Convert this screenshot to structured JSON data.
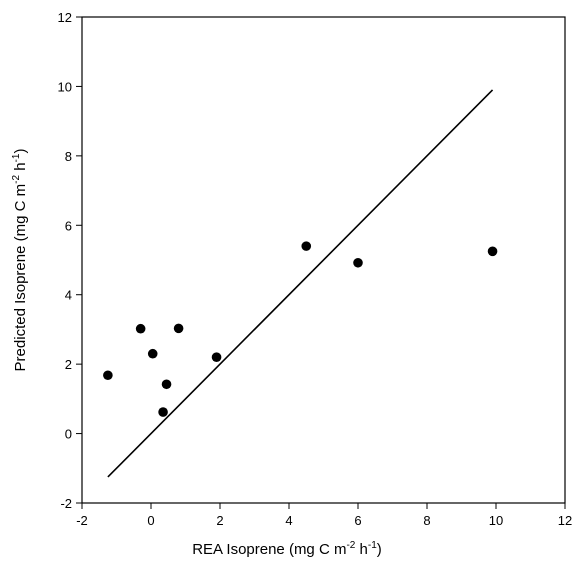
{
  "chart_data": {
    "type": "scatter",
    "title": "",
    "xlabel": {
      "main": "REA Isoprene (mg C m",
      "sup1": "-2",
      "mid": " h",
      "sup2": "-1",
      "end": ")"
    },
    "ylabel": {
      "main": "Predicted Isoprene (mg C m",
      "sup1": "-2",
      "mid": " h",
      "sup2": "-1",
      "end": ")"
    },
    "xlim": [
      -2,
      12
    ],
    "ylim": [
      -2,
      12
    ],
    "xticks": [
      -2,
      0,
      2,
      4,
      6,
      8,
      10,
      12
    ],
    "yticks": [
      -2,
      0,
      2,
      4,
      6,
      8,
      10,
      12
    ],
    "grid": false,
    "points": [
      {
        "x": -1.25,
        "y": 1.68
      },
      {
        "x": -0.3,
        "y": 3.02
      },
      {
        "x": 0.05,
        "y": 2.3
      },
      {
        "x": 0.35,
        "y": 0.62
      },
      {
        "x": 0.45,
        "y": 1.42
      },
      {
        "x": 0.8,
        "y": 3.03
      },
      {
        "x": 1.9,
        "y": 2.2
      },
      {
        "x": 4.5,
        "y": 5.4
      },
      {
        "x": 6.0,
        "y": 4.92
      },
      {
        "x": 9.9,
        "y": 5.25
      }
    ],
    "line": {
      "x": [
        -1.25,
        9.9
      ],
      "y": [
        -1.25,
        9.9
      ]
    },
    "colors": {
      "points": "#000000",
      "line": "#000000",
      "axes": "#000000"
    }
  }
}
